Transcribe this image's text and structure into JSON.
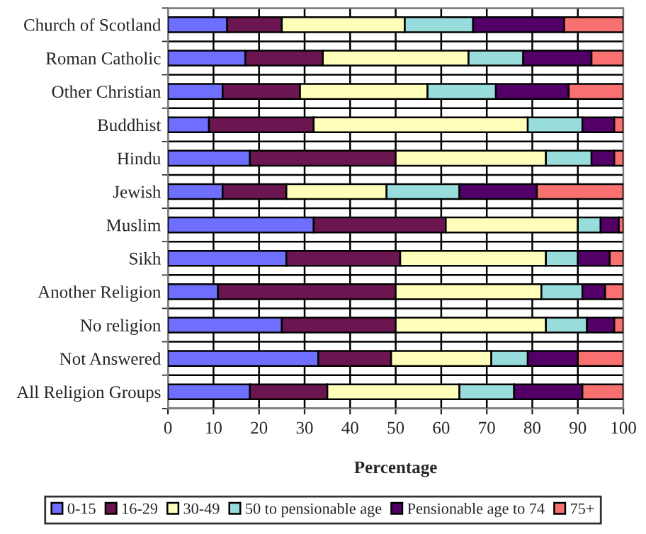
{
  "chart_data": {
    "type": "bar",
    "orientation": "horizontal",
    "stacked": true,
    "xlabel": "Percentage",
    "categories": [
      "Church of Scotland",
      "Roman Catholic",
      "Other Christian",
      "Buddhist",
      "Hindu",
      "Jewish",
      "Muslim",
      "Sikh",
      "Another Religion",
      "No religion",
      "Not Answered",
      "All Religion Groups"
    ],
    "series": [
      {
        "name": "0-15",
        "color": "#6f6fff",
        "values": [
          13,
          17,
          12,
          9,
          18,
          12,
          32,
          26,
          11,
          25,
          33,
          18
        ]
      },
      {
        "name": "16-29",
        "color": "#6b1650",
        "values": [
          12,
          17,
          17,
          23,
          32,
          14,
          29,
          25,
          39,
          25,
          16,
          17
        ]
      },
      {
        "name": "30-49",
        "color": "#ffffbb",
        "values": [
          27,
          32,
          28,
          47,
          33,
          22,
          29,
          32,
          32,
          33,
          22,
          29
        ]
      },
      {
        "name": "50 to pensionable age",
        "color": "#99dcdc",
        "values": [
          15,
          12,
          15,
          12,
          10,
          16,
          5,
          7,
          9,
          9,
          8,
          12
        ]
      },
      {
        "name": "Pensionable age to 74",
        "color": "#520068",
        "values": [
          20,
          15,
          16,
          7,
          5,
          17,
          4,
          7,
          5,
          6,
          11,
          15
        ]
      },
      {
        "name": "75+",
        "color": "#f87070",
        "values": [
          13,
          7,
          12,
          2,
          2,
          19,
          1,
          3,
          4,
          2,
          10,
          9
        ]
      }
    ],
    "xlim": [
      0,
      100
    ],
    "xticks": [
      0,
      10,
      20,
      30,
      40,
      50,
      60,
      70,
      80,
      90,
      100
    ],
    "grid": true,
    "legend": "bottom"
  }
}
